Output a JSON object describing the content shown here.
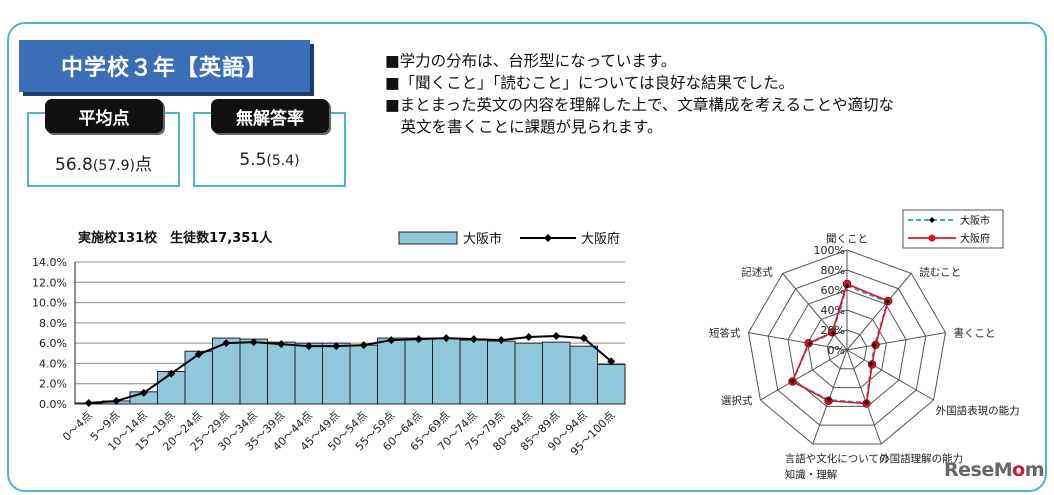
{
  "header": {
    "title": "中学校３年【英語】"
  },
  "stats": [
    {
      "label": "平均点",
      "value": "56.8",
      "sub": "(57.9)",
      "unit": "点"
    },
    {
      "label": "無解答率",
      "value": "5.5",
      "sub": "(5.4)",
      "unit": ""
    }
  ],
  "notes": [
    "■学力の分布は、台形型になっています。",
    "■「聞くこと」「読むこと」については良好な結果でした。",
    "■まとまった英文の内容を理解した上で、文章構成を考えることや適切な",
    "　英文を書くことに課題が見られます。"
  ],
  "logo": {
    "part1": "ReseM",
    "part2": "o",
    "part3": "m"
  },
  "chart_data": [
    {
      "type": "bar",
      "title": "実施校131校　生徒数17,351人",
      "categories": [
        "0～4点",
        "5～9点",
        "10～14点",
        "15～19点",
        "20～24点",
        "25～29点",
        "30～34点",
        "35～39点",
        "40～44点",
        "45～49点",
        "50～54点",
        "55～59点",
        "60～64点",
        "65～69点",
        "70～74点",
        "75～79点",
        "80～84点",
        "85～89点",
        "90～94点",
        "95～100点"
      ],
      "series": [
        {
          "name": "大阪市",
          "type": "bar",
          "color": "#92c8dc",
          "values": [
            0.1,
            0.3,
            1.2,
            3.2,
            5.2,
            6.5,
            6.4,
            6.1,
            6.0,
            6.0,
            5.8,
            6.5,
            6.5,
            6.5,
            6.3,
            6.2,
            6.0,
            6.1,
            5.7,
            3.9
          ]
        },
        {
          "name": "大阪府",
          "type": "line",
          "color": "#000000",
          "values": [
            0.1,
            0.3,
            1.1,
            3.0,
            4.9,
            6.0,
            6.1,
            5.9,
            5.7,
            5.7,
            5.8,
            6.3,
            6.4,
            6.5,
            6.4,
            6.3,
            6.6,
            6.7,
            6.5,
            4.2
          ]
        }
      ],
      "yticks": [
        "0.0%",
        "2.0%",
        "4.0%",
        "6.0%",
        "8.0%",
        "10.0%",
        "12.0%",
        "14.0%"
      ],
      "ylim": [
        0,
        14
      ],
      "grid": true,
      "legend": "top-right"
    },
    {
      "type": "radar",
      "axes": [
        "聞くこと",
        "読むこと",
        "書くこと",
        "外国語表現の能力",
        "外国語理解の能力",
        "言語や文化についての知識・理解",
        "選択式",
        "短答式",
        "記述式"
      ],
      "rticks": [
        "0%",
        "20%",
        "40%",
        "60%",
        "80%",
        "100%"
      ],
      "rlim": [
        0,
        100
      ],
      "series": [
        {
          "name": "大阪市",
          "color": "#1f9fd8",
          "values": [
            64,
            63,
            28,
            28,
            56,
            53,
            63,
            38,
            22
          ]
        },
        {
          "name": "大阪府",
          "color": "#e0141e",
          "values": [
            66,
            64,
            29,
            29,
            57,
            54,
            63,
            39,
            23
          ]
        }
      ],
      "legend": "top-right"
    }
  ]
}
